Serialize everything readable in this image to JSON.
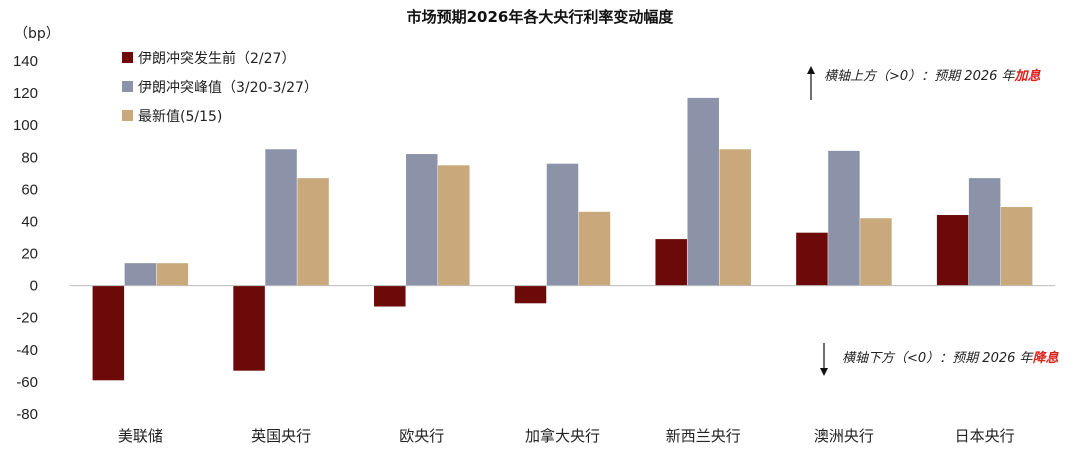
{
  "chart_data": {
    "type": "bar",
    "title": "市场预期2026年各大央行利率变动幅度",
    "unit": "（bp）",
    "categories": [
      "美联储",
      "英国央行",
      "欧央行",
      "加拿大央行",
      "新西兰央行",
      "澳洲央行",
      "日本央行"
    ],
    "ylim": [
      -80,
      140
    ],
    "yticks": [
      140,
      120,
      100,
      80,
      60,
      40,
      20,
      0,
      -20,
      -40,
      -60,
      -80
    ],
    "grid": false,
    "legend_position": "top-left",
    "series": [
      {
        "name": "伊朗冲突发生前（2/27）",
        "color": "#6b0a08",
        "values": [
          -59,
          -53,
          -13,
          -11,
          29,
          33,
          44
        ]
      },
      {
        "name": "伊朗冲突峰值（3/20-3/27）",
        "color": "#8c92a8",
        "values": [
          14,
          85,
          82,
          76,
          117,
          84,
          67
        ]
      },
      {
        "name": "最新值(5/15)",
        "color": "#c9a97c",
        "values": [
          14,
          67,
          75,
          46,
          85,
          42,
          49
        ]
      }
    ],
    "annotations": {
      "up": {
        "prefix": "横轴上方（>0）：预期 2026 年",
        "emphasis": "加息"
      },
      "down": {
        "prefix": "横轴下方（<0）：预期 2026 年",
        "emphasis": "降息"
      }
    }
  }
}
